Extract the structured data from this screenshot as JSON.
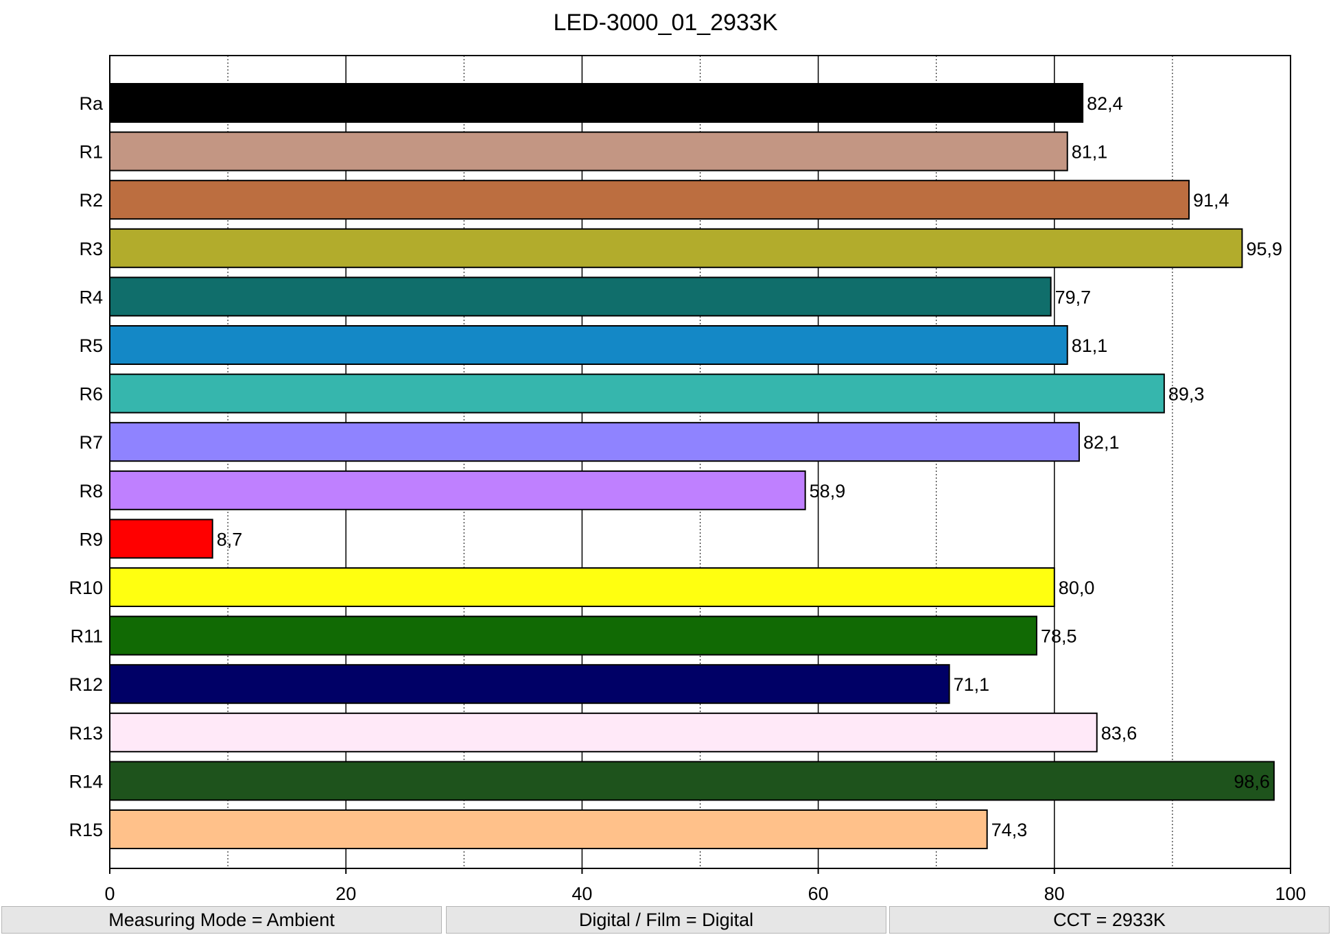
{
  "chart_data": {
    "type": "bar",
    "orientation": "horizontal",
    "title": "LED-3000_01_2933K",
    "categories": [
      "Ra",
      "R1",
      "R2",
      "R3",
      "R4",
      "R5",
      "R6",
      "R7",
      "R8",
      "R9",
      "R10",
      "R11",
      "R12",
      "R13",
      "R14",
      "R15"
    ],
    "values": [
      82.4,
      81.1,
      91.4,
      95.9,
      79.7,
      81.1,
      89.3,
      82.1,
      58.9,
      8.7,
      80.0,
      78.5,
      71.1,
      83.6,
      98.6,
      74.3
    ],
    "value_labels": [
      "82,4",
      "81,1",
      "91,4",
      "95,9",
      "79,7",
      "81,1",
      "89,3",
      "82,1",
      "58,9",
      "8,7",
      "80,0",
      "78,5",
      "71,1",
      "83,6",
      "98,6",
      "74,3"
    ],
    "colors": [
      "#000000",
      "#c39683",
      "#bc6e40",
      "#b2ac2c",
      "#106e6b",
      "#1488c6",
      "#36b6ad",
      "#8f83ff",
      "#bf80ff",
      "#ff0000",
      "#ffff10",
      "#116a04",
      "#000066",
      "#ffe9f8",
      "#1e531c",
      "#ffc18a"
    ],
    "xlim": [
      0,
      100
    ],
    "x_ticks": [
      0,
      20,
      40,
      60,
      80,
      100
    ],
    "x_tick_labels": [
      "0",
      "20",
      "40",
      "60",
      "80",
      "100"
    ],
    "grid": {
      "major": [
        20,
        40,
        60,
        80
      ],
      "minor": [
        10,
        30,
        50,
        70,
        90
      ]
    },
    "xlabel": "",
    "ylabel": "",
    "legend": "none"
  },
  "status_bar": {
    "measuring_mode": "Measuring Mode = Ambient",
    "digital_film": "Digital / Film = Digital",
    "cct": "CCT = 2933K"
  }
}
